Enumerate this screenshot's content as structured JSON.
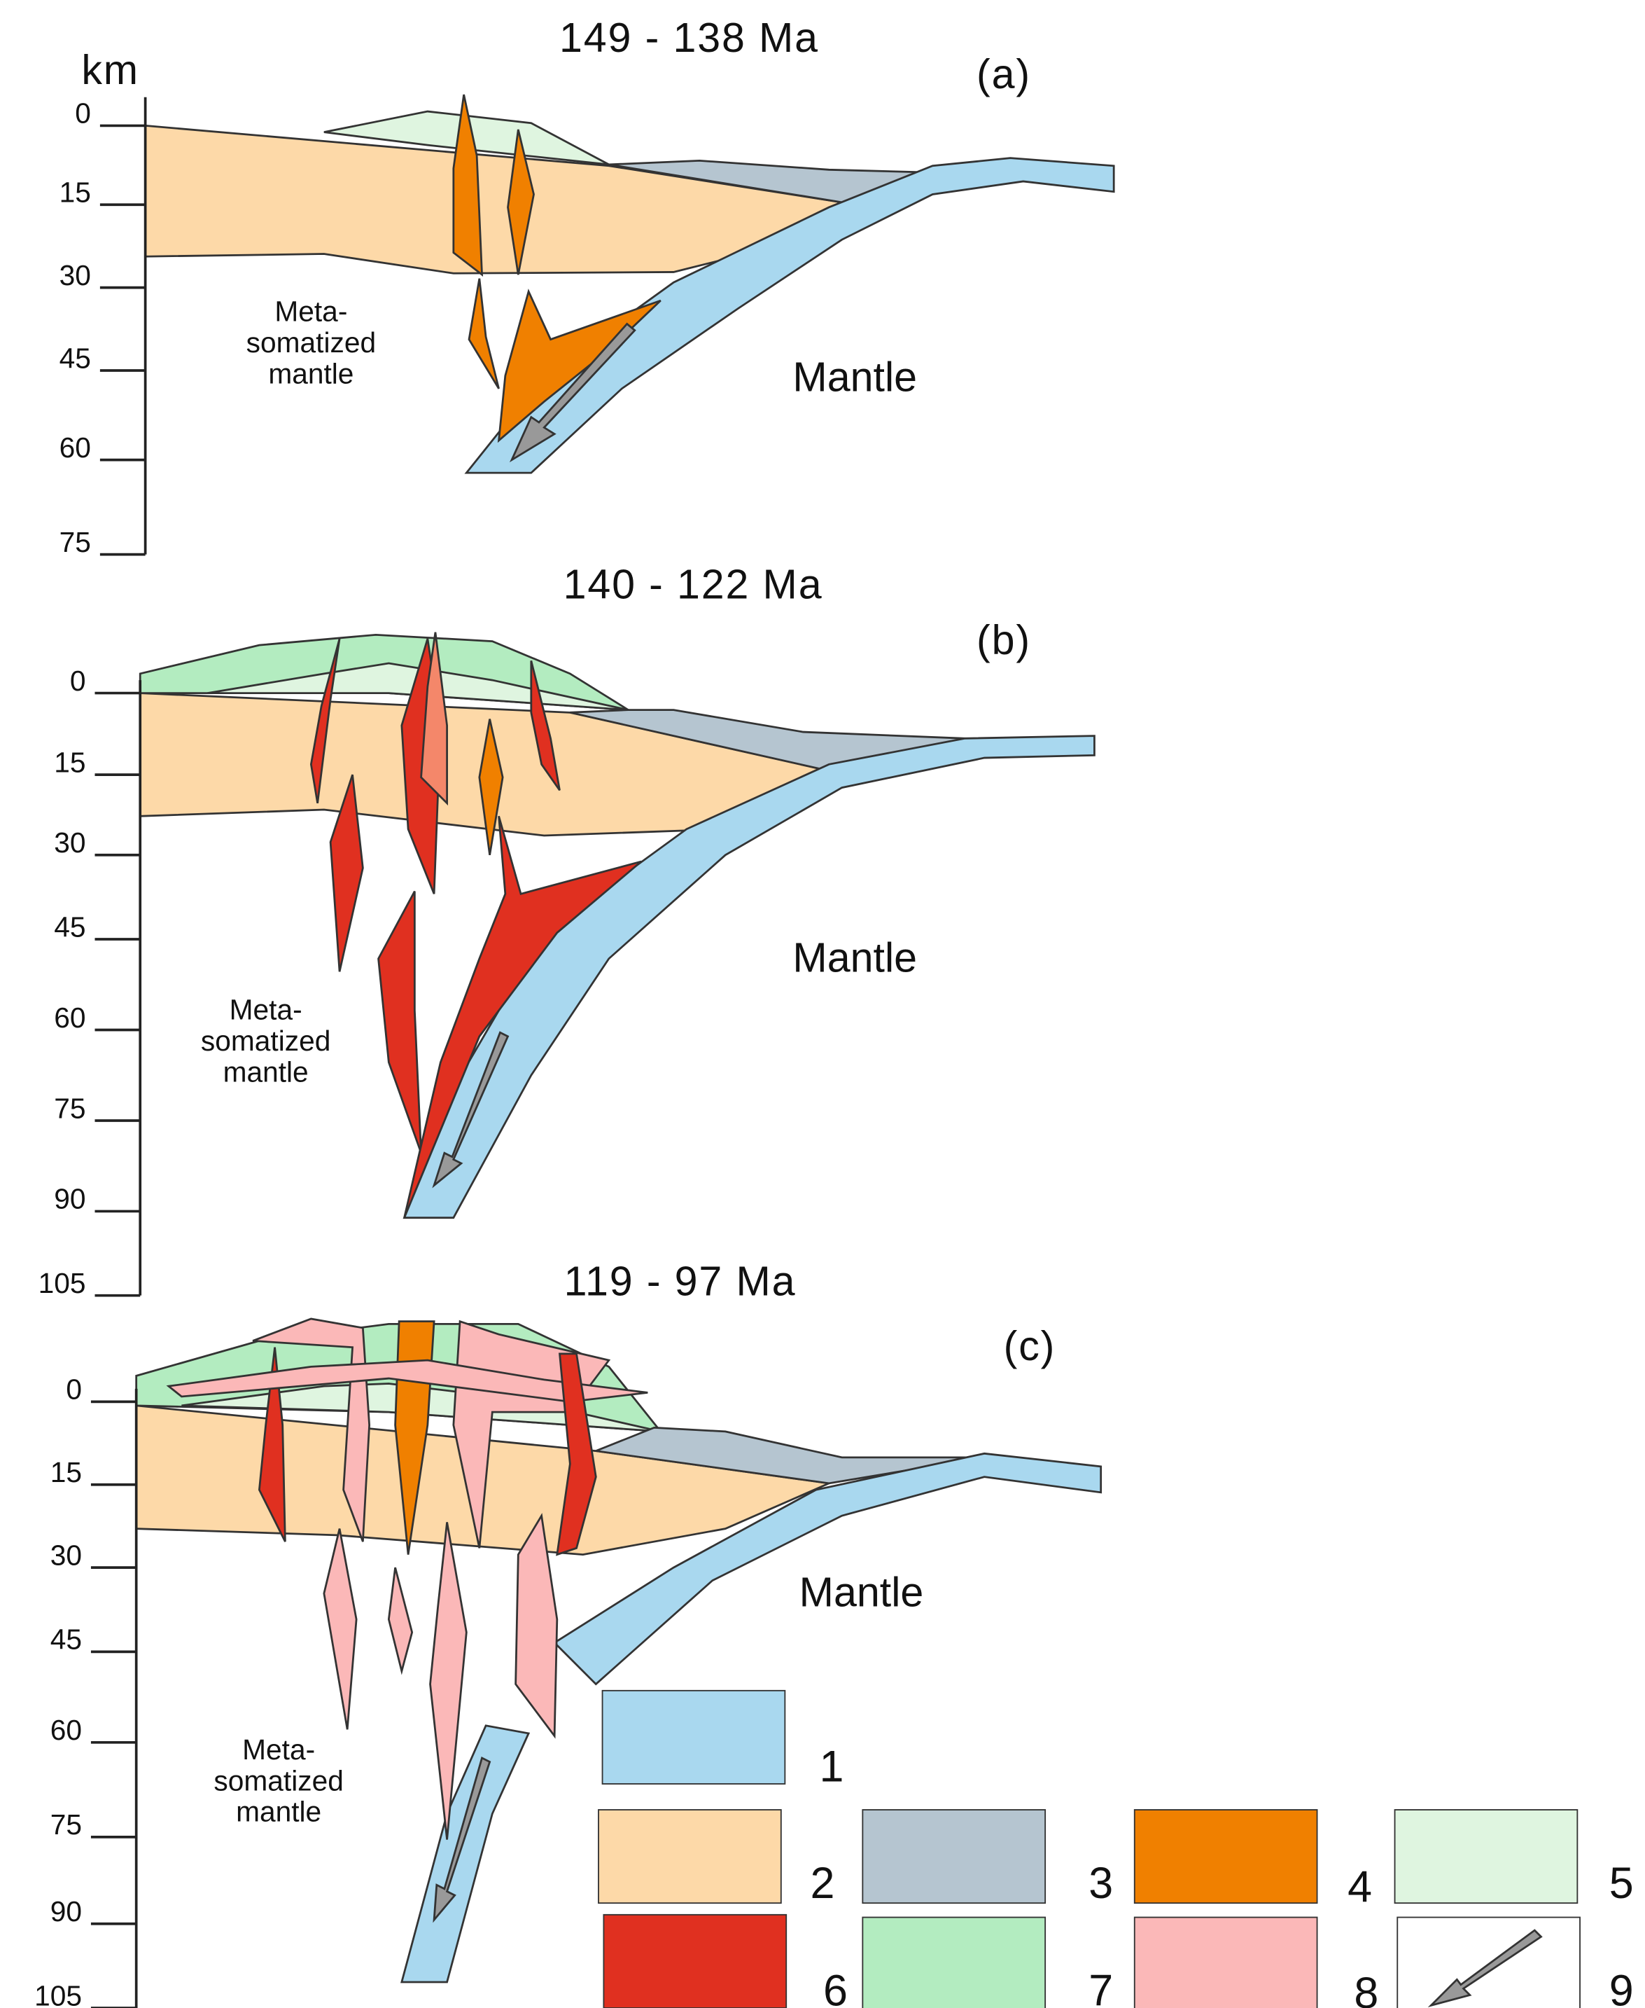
{
  "unit": "km",
  "panels": [
    {
      "title": "149 - 138 Ma",
      "label": "(a)",
      "depth_ticks": [
        "0",
        "15",
        "30",
        "45",
        "60",
        "75"
      ],
      "annotations": [
        "Meta-",
        "somatized",
        "mantle",
        "Mantle"
      ]
    },
    {
      "title": "140 - 122 Ma",
      "label": "(b)",
      "depth_ticks": [
        "0",
        "15",
        "30",
        "45",
        "60",
        "75",
        "90",
        "105"
      ],
      "annotations": [
        "Meta-",
        "somatized",
        "mantle",
        "Mantle"
      ]
    },
    {
      "title": "119 - 97 Ma",
      "label": "(c)",
      "depth_ticks": [
        "0",
        "15",
        "30",
        "45",
        "60",
        "75",
        "90",
        "105"
      ],
      "annotations": [
        "Meta-",
        "somatized",
        "mantle",
        "Mantle"
      ]
    }
  ],
  "legend": [
    "1",
    "2",
    "3",
    "4",
    "5",
    "6",
    "7",
    "8",
    "9"
  ]
}
